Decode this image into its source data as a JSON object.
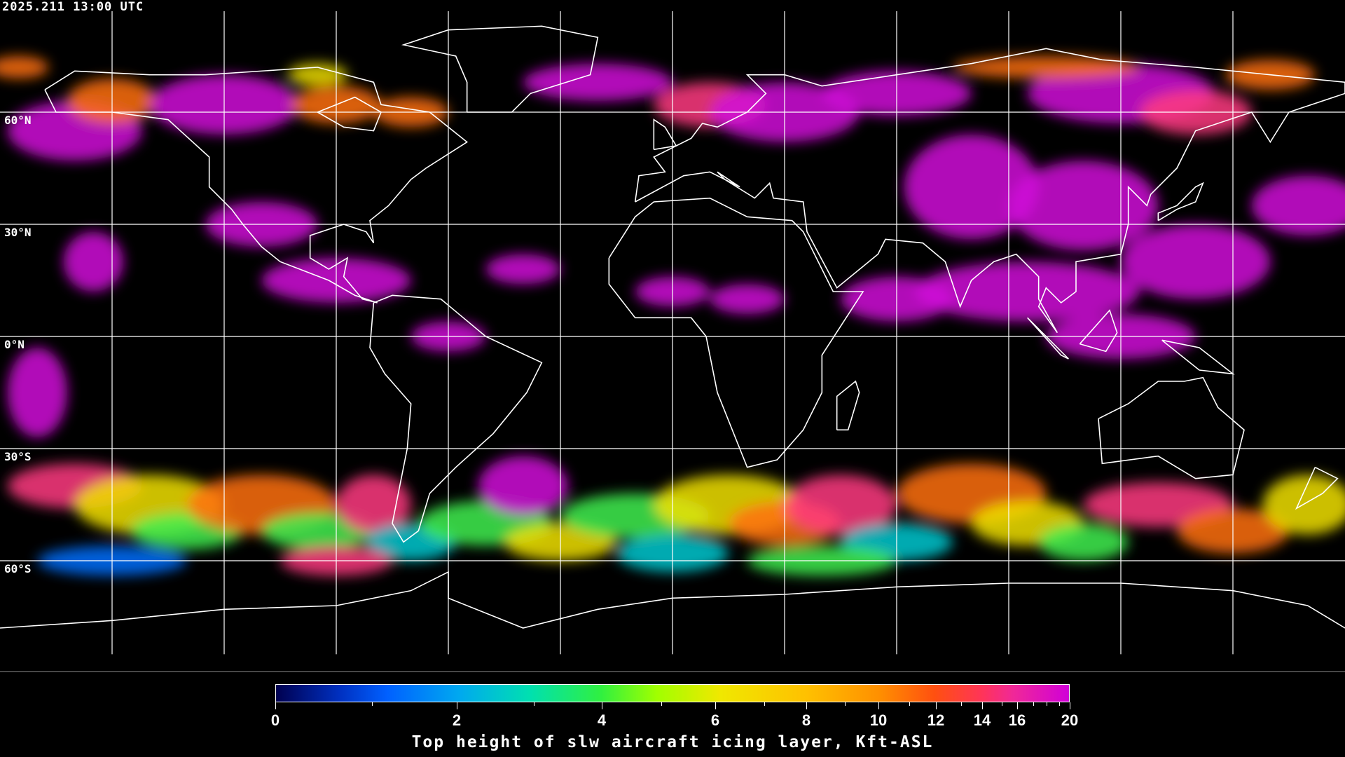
{
  "timestamp": "2025.211 13:00 UTC",
  "map": {
    "projection": "equirectangular",
    "grid_spacing_degrees": 30,
    "lat_labels": [
      "60°N",
      "30°N",
      "0°N",
      "30°S",
      "60°S"
    ],
    "coastline_color": "#ffffff",
    "grid_color": "#ffffff"
  },
  "colorbar": {
    "title": "Top height of slw aircraft icing layer, Kft-ASL",
    "tick_labels": [
      "0",
      "2",
      "4",
      "6",
      "8",
      "10",
      "12",
      "14",
      "16",
      "20"
    ],
    "minor_ticks": [
      1,
      3,
      5,
      7,
      9,
      11,
      13,
      15,
      17,
      18,
      19
    ],
    "range": [
      0,
      20
    ],
    "colors": [
      "#000050",
      "#0060ff",
      "#00a8f0",
      "#00e0b0",
      "#30f040",
      "#a0ff00",
      "#f0e800",
      "#ffc000",
      "#ff9000",
      "#ff5010",
      "#ff3458",
      "#d000d8"
    ]
  }
}
